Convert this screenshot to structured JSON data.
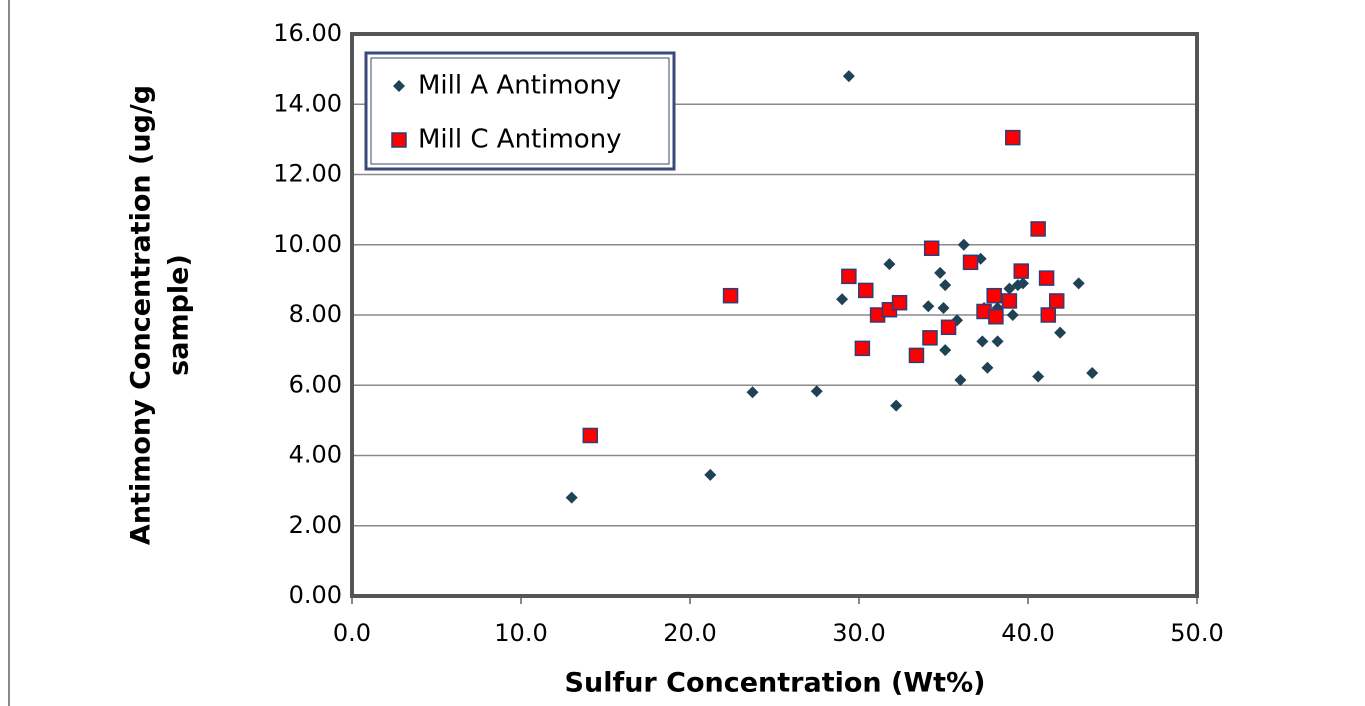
{
  "chart_data": {
    "type": "scatter",
    "xlabel": "Sulfur Concentration (Wt%)",
    "ylabel": [
      "Antimony  Concentration (ug/g",
      "sample)"
    ],
    "xlim": [
      0,
      50
    ],
    "ylim": [
      0,
      16
    ],
    "xticks": [
      {
        "value": 0,
        "label": "0.0"
      },
      {
        "value": 10,
        "label": "10.0"
      },
      {
        "value": 20,
        "label": "20.0"
      },
      {
        "value": 30,
        "label": "30.0"
      },
      {
        "value": 40,
        "label": "40.0"
      },
      {
        "value": 50,
        "label": "50.0"
      }
    ],
    "yticks": [
      {
        "value": 0,
        "label": "0.00"
      },
      {
        "value": 2,
        "label": "2.00"
      },
      {
        "value": 4,
        "label": "4.00"
      },
      {
        "value": 6,
        "label": "6.00"
      },
      {
        "value": 8,
        "label": "8.00"
      },
      {
        "value": 10,
        "label": "10.00"
      },
      {
        "value": 12,
        "label": "12.00"
      },
      {
        "value": 14,
        "label": "14.00"
      },
      {
        "value": 16,
        "label": "16.00"
      }
    ],
    "grid": true,
    "legend": "upper left",
    "series": [
      {
        "name": "Mill A Antimony",
        "color": "#1f4254",
        "marker": "diamond",
        "x": [
          13.0,
          21.2,
          23.7,
          27.5,
          29.0,
          29.4,
          31.8,
          32.2,
          34.1,
          34.8,
          35.0,
          35.1,
          35.1,
          35.8,
          36.0,
          36.2,
          37.2,
          37.3,
          37.4,
          37.6,
          38.2,
          38.2,
          38.9,
          39.1,
          39.4,
          39.7,
          40.6,
          41.0,
          41.9,
          43.0,
          43.8
        ],
        "values": [
          2.8,
          3.45,
          5.8,
          5.83,
          8.45,
          14.8,
          9.45,
          5.42,
          8.25,
          9.2,
          8.2,
          8.85,
          7.0,
          7.85,
          6.15,
          10.0,
          9.6,
          7.25,
          8.2,
          6.5,
          7.25,
          8.2,
          8.75,
          8.0,
          8.85,
          8.9,
          6.25,
          9.0,
          7.5,
          8.9,
          6.35
        ]
      },
      {
        "name": "Mill C Antimony",
        "color": "#ff0000",
        "marker": "square",
        "x": [
          14.1,
          22.4,
          29.4,
          30.2,
          30.4,
          31.1,
          31.8,
          32.4,
          33.4,
          34.2,
          34.3,
          35.3,
          36.6,
          37.4,
          38.0,
          38.1,
          38.9,
          39.1,
          39.6,
          40.6,
          41.1,
          41.2,
          41.7
        ],
        "values": [
          4.57,
          8.55,
          9.1,
          7.05,
          8.7,
          8.0,
          8.15,
          8.35,
          6.85,
          7.35,
          9.9,
          7.65,
          9.5,
          8.1,
          8.55,
          7.95,
          8.4,
          13.05,
          9.25,
          10.45,
          9.05,
          8.0,
          8.4
        ]
      }
    ]
  }
}
